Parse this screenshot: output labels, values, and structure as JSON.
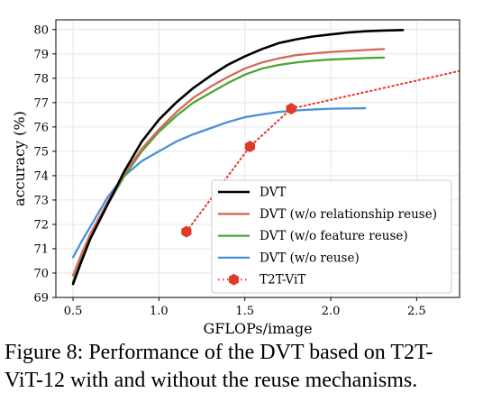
{
  "chart_data": {
    "type": "line",
    "xlabel": "GFLOPs/image",
    "ylabel": "accuracy (%)",
    "xlim": [
      0.4,
      2.75
    ],
    "ylim": [
      69,
      80.4
    ],
    "xticks": [
      0.5,
      1.0,
      1.5,
      2.0,
      2.5
    ],
    "xtick_labels": [
      "0.5",
      "1.0",
      "1.5",
      "2.0",
      "2.5"
    ],
    "yticks": [
      69,
      70,
      71,
      72,
      73,
      74,
      75,
      76,
      77,
      78,
      79,
      80
    ],
    "ytick_labels": [
      "69",
      "70",
      "71",
      "72",
      "73",
      "74",
      "75",
      "76",
      "77",
      "78",
      "79",
      "80"
    ],
    "grid": true,
    "legend_position": "lower-right",
    "series": [
      {
        "name": "DVT",
        "color": "#000000",
        "style": "solid",
        "x": [
          0.5,
          0.55,
          0.6,
          0.7,
          0.8,
          0.9,
          1.0,
          1.1,
          1.2,
          1.3,
          1.4,
          1.5,
          1.6,
          1.7,
          1.8,
          1.9,
          2.0,
          2.1,
          2.2,
          2.3,
          2.42
        ],
        "y": [
          69.55,
          70.5,
          71.4,
          72.8,
          74.2,
          75.4,
          76.3,
          77.0,
          77.6,
          78.1,
          78.55,
          78.9,
          79.2,
          79.45,
          79.6,
          79.72,
          79.8,
          79.88,
          79.93,
          79.96,
          79.98
        ]
      },
      {
        "name": "DVT (w/o relationship reuse)",
        "color": "#d4695a",
        "style": "solid",
        "x": [
          0.5,
          0.55,
          0.6,
          0.7,
          0.8,
          0.9,
          1.0,
          1.1,
          1.2,
          1.3,
          1.4,
          1.5,
          1.6,
          1.7,
          1.8,
          1.9,
          2.0,
          2.1,
          2.2,
          2.31
        ],
        "y": [
          69.9,
          70.8,
          71.6,
          72.9,
          74.1,
          75.1,
          75.9,
          76.6,
          77.2,
          77.65,
          78.05,
          78.4,
          78.65,
          78.82,
          78.95,
          79.02,
          79.08,
          79.12,
          79.16,
          79.2
        ]
      },
      {
        "name": "DVT (w/o feature reuse)",
        "color": "#4ea433",
        "style": "solid",
        "x": [
          0.5,
          0.55,
          0.6,
          0.7,
          0.8,
          0.9,
          1.0,
          1.1,
          1.2,
          1.3,
          1.4,
          1.5,
          1.6,
          1.7,
          1.8,
          1.9,
          2.0,
          2.1,
          2.2,
          2.31
        ],
        "y": [
          69.65,
          70.6,
          71.4,
          72.8,
          74.0,
          75.0,
          75.8,
          76.45,
          77.0,
          77.4,
          77.8,
          78.15,
          78.4,
          78.55,
          78.65,
          78.72,
          78.77,
          78.8,
          78.83,
          78.85
        ]
      },
      {
        "name": "DVT (w/o reuse)",
        "color": "#4a90d9",
        "style": "solid",
        "x": [
          0.5,
          0.55,
          0.6,
          0.7,
          0.8,
          0.9,
          1.0,
          1.1,
          1.2,
          1.3,
          1.4,
          1.5,
          1.6,
          1.7,
          1.8,
          1.9,
          2.0,
          2.1,
          2.2
        ],
        "y": [
          70.65,
          71.3,
          71.9,
          73.1,
          74.0,
          74.6,
          75.0,
          75.4,
          75.7,
          75.95,
          76.2,
          76.4,
          76.52,
          76.62,
          76.68,
          76.72,
          76.75,
          76.76,
          76.77
        ]
      },
      {
        "name": "T2T-ViT",
        "color": "#e03b2a",
        "style": "dotted",
        "marker": "hexagon",
        "x": [
          1.16,
          1.53,
          1.77,
          2.75
        ],
        "y": [
          71.7,
          75.2,
          76.75,
          78.3
        ],
        "marker_x": [
          1.16,
          1.53,
          1.77
        ],
        "marker_y": [
          71.7,
          75.2,
          76.75
        ]
      }
    ]
  },
  "caption": {
    "line1": "Figure 8: Performance of the DVT based on T2T-",
    "line2": "ViT-12 with and without the reuse mechanisms."
  }
}
